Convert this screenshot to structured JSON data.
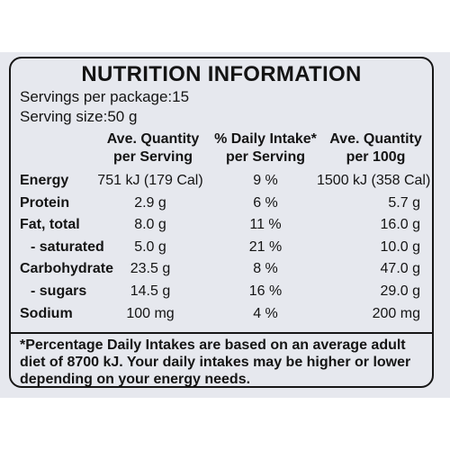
{
  "label": {
    "title": "NUTRITION INFORMATION",
    "servings_per_package": "Servings per package:15",
    "serving_size": "Serving size:50 g"
  },
  "headers": [
    "Ave. Quantity\nper Serving",
    "% Daily Intake*\nper Serving",
    "Ave. Quantity\nper 100g"
  ],
  "rows": [
    {
      "name": "Energy",
      "per_serving": "751  kJ (179 Cal)",
      "daily_intake": "9 %",
      "per_100g": "1500 kJ (358 Cal)"
    },
    {
      "name": "Protein",
      "per_serving": "2.9 g",
      "daily_intake": "6 %",
      "per_100g": "5.7 g"
    },
    {
      "name": "Fat, total",
      "per_serving": "8.0 g",
      "daily_intake": "11 %",
      "per_100g": "16.0 g"
    },
    {
      "name": "- saturated",
      "per_serving": "5.0 g",
      "daily_intake": "21 %",
      "per_100g": "10.0 g"
    },
    {
      "name": "Carbohydrate",
      "per_serving": "23.5 g",
      "daily_intake": "8 %",
      "per_100g": "47.0 g"
    },
    {
      "name": "- sugars",
      "per_serving": "14.5 g",
      "daily_intake": "16 %",
      "per_100g": "29.0 g"
    },
    {
      "name": "Sodium",
      "per_serving": "100 mg",
      "daily_intake": "4 %",
      "per_100g": "200 mg"
    }
  ],
  "footnote": "*Percentage Daily Intakes are based on an average adult diet of 8700 kJ. Your daily intakes may be higher or lower depending on your energy needs."
}
